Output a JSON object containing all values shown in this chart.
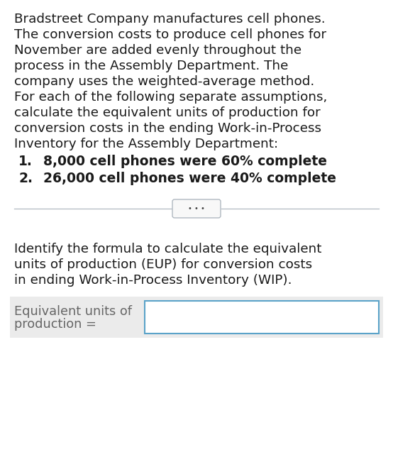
{
  "background_color": "#ffffff",
  "border_color": "#b8ccd8",
  "paragraph_lines": [
    "Bradstreet Company manufactures cell phones.",
    "The conversion costs to produce cell phones for",
    "November are added evenly throughout the",
    "process in the Assembly Department. The",
    "company uses the weighted-average method.",
    "For each of the following separate assumptions,",
    "calculate the equivalent units of production for",
    "conversion costs in the ending Work-in-Process",
    "Inventory for the Assembly Department:"
  ],
  "item1_num": "1.",
  "item1_text": "  8,000 cell phones were 60% complete",
  "item2_num": "2.",
  "item2_text": "  26,000 cell phones were 40% complete",
  "divider_dots": "• • •",
  "identify_lines": [
    "Identify the formula to calculate the equivalent",
    "units of production (EUP) for conversion costs",
    "in ending Work-in-Process Inventory (WIP)."
  ],
  "formula_label_line1": "Equivalent units of",
  "formula_label_line2": "production =",
  "text_color": "#1a1a1a",
  "label_color": "#666666",
  "gray_bg": "#ebebeb",
  "box_border_color": "#5ba3c9",
  "divider_color": "#b0b8c0",
  "bubble_border_color": "#b0b8c0",
  "font_size_main": 13.2,
  "font_size_items": 13.5,
  "font_size_label": 12.8,
  "font_size_dots": 7
}
